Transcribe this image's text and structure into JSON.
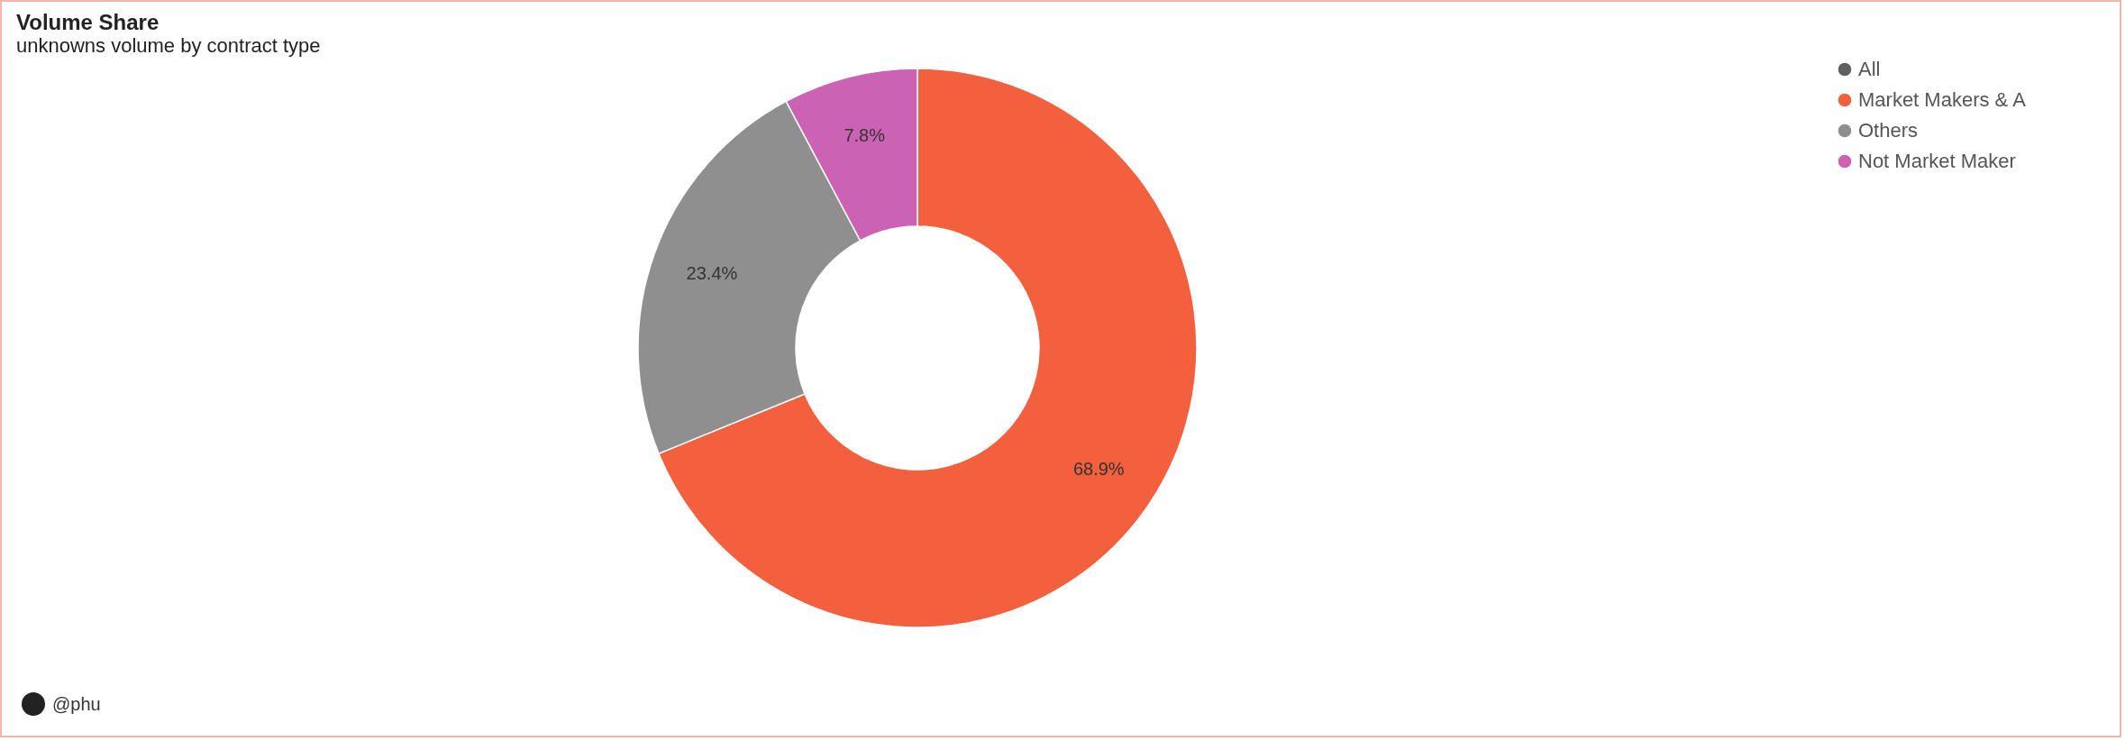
{
  "chart_data": {
    "type": "donut",
    "title": "Volume Share",
    "subtitle": "unknowns volume by contract type",
    "categories": [
      "All",
      "Market Makers & A",
      "Others",
      "Not Market Maker"
    ],
    "values": [
      0,
      68.9,
      23.4,
      7.8
    ],
    "colors": [
      "#5f5f5f",
      "#f2603d",
      "#8f8f8f",
      "#cc62b3"
    ],
    "value_labels": [
      null,
      "68.9%",
      "23.4%",
      "7.8%"
    ],
    "legend": "right",
    "annotations": [
      "@phu"
    ]
  }
}
